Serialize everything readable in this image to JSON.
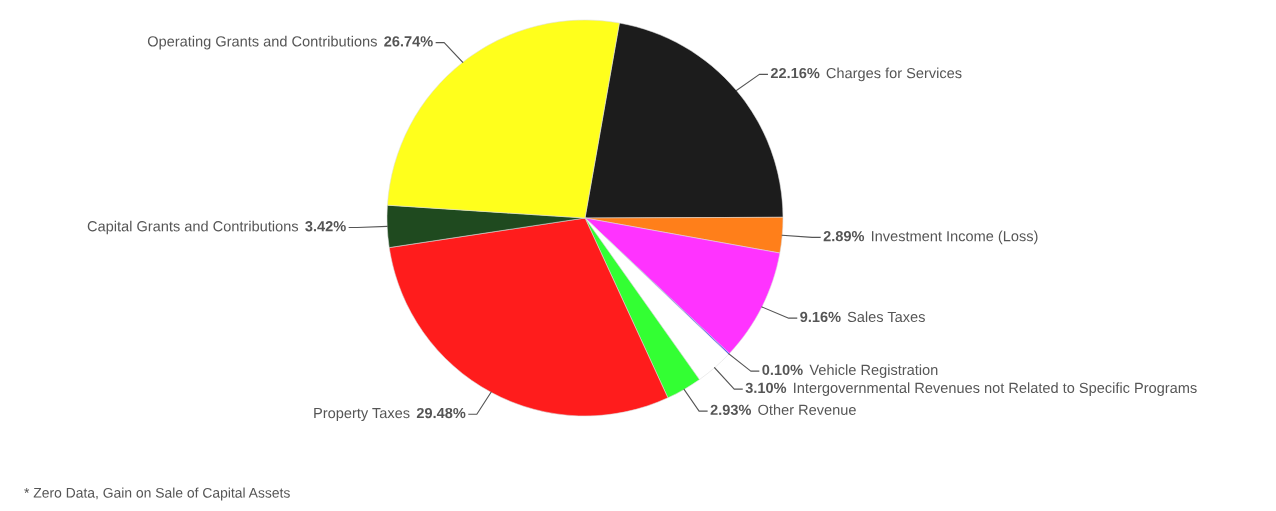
{
  "chart_data": {
    "type": "pie",
    "categories": [
      "Charges for Services",
      "Investment Income (Loss)",
      "Sales Taxes",
      "Vehicle Registration",
      "Intergovernmental Revenues not Related to Specific Programs",
      "Other Revenue",
      "Property Taxes",
      "Capital Grants and Contributions",
      "Operating Grants and Contributions"
    ],
    "values": [
      22.16,
      2.89,
      9.16,
      0.1,
      3.1,
      2.93,
      29.48,
      3.42,
      26.74
    ],
    "colors": [
      "#1c1c1c",
      "#ff7f1a",
      "#ff33ff",
      "#3333ff",
      "#ffffff",
      "#33ff33",
      "#ff1c1c",
      "#1f4a1f",
      "#ffff1c"
    ],
    "value_labels": [
      "22.16%",
      "2.89%",
      "9.16%",
      "0.10%",
      "3.10%",
      "2.93%",
      "29.48%",
      "3.42%",
      "26.74%"
    ],
    "legend": false,
    "annotations": [
      "* Zero Data, Gain on Sale of Capital Assets"
    ]
  }
}
